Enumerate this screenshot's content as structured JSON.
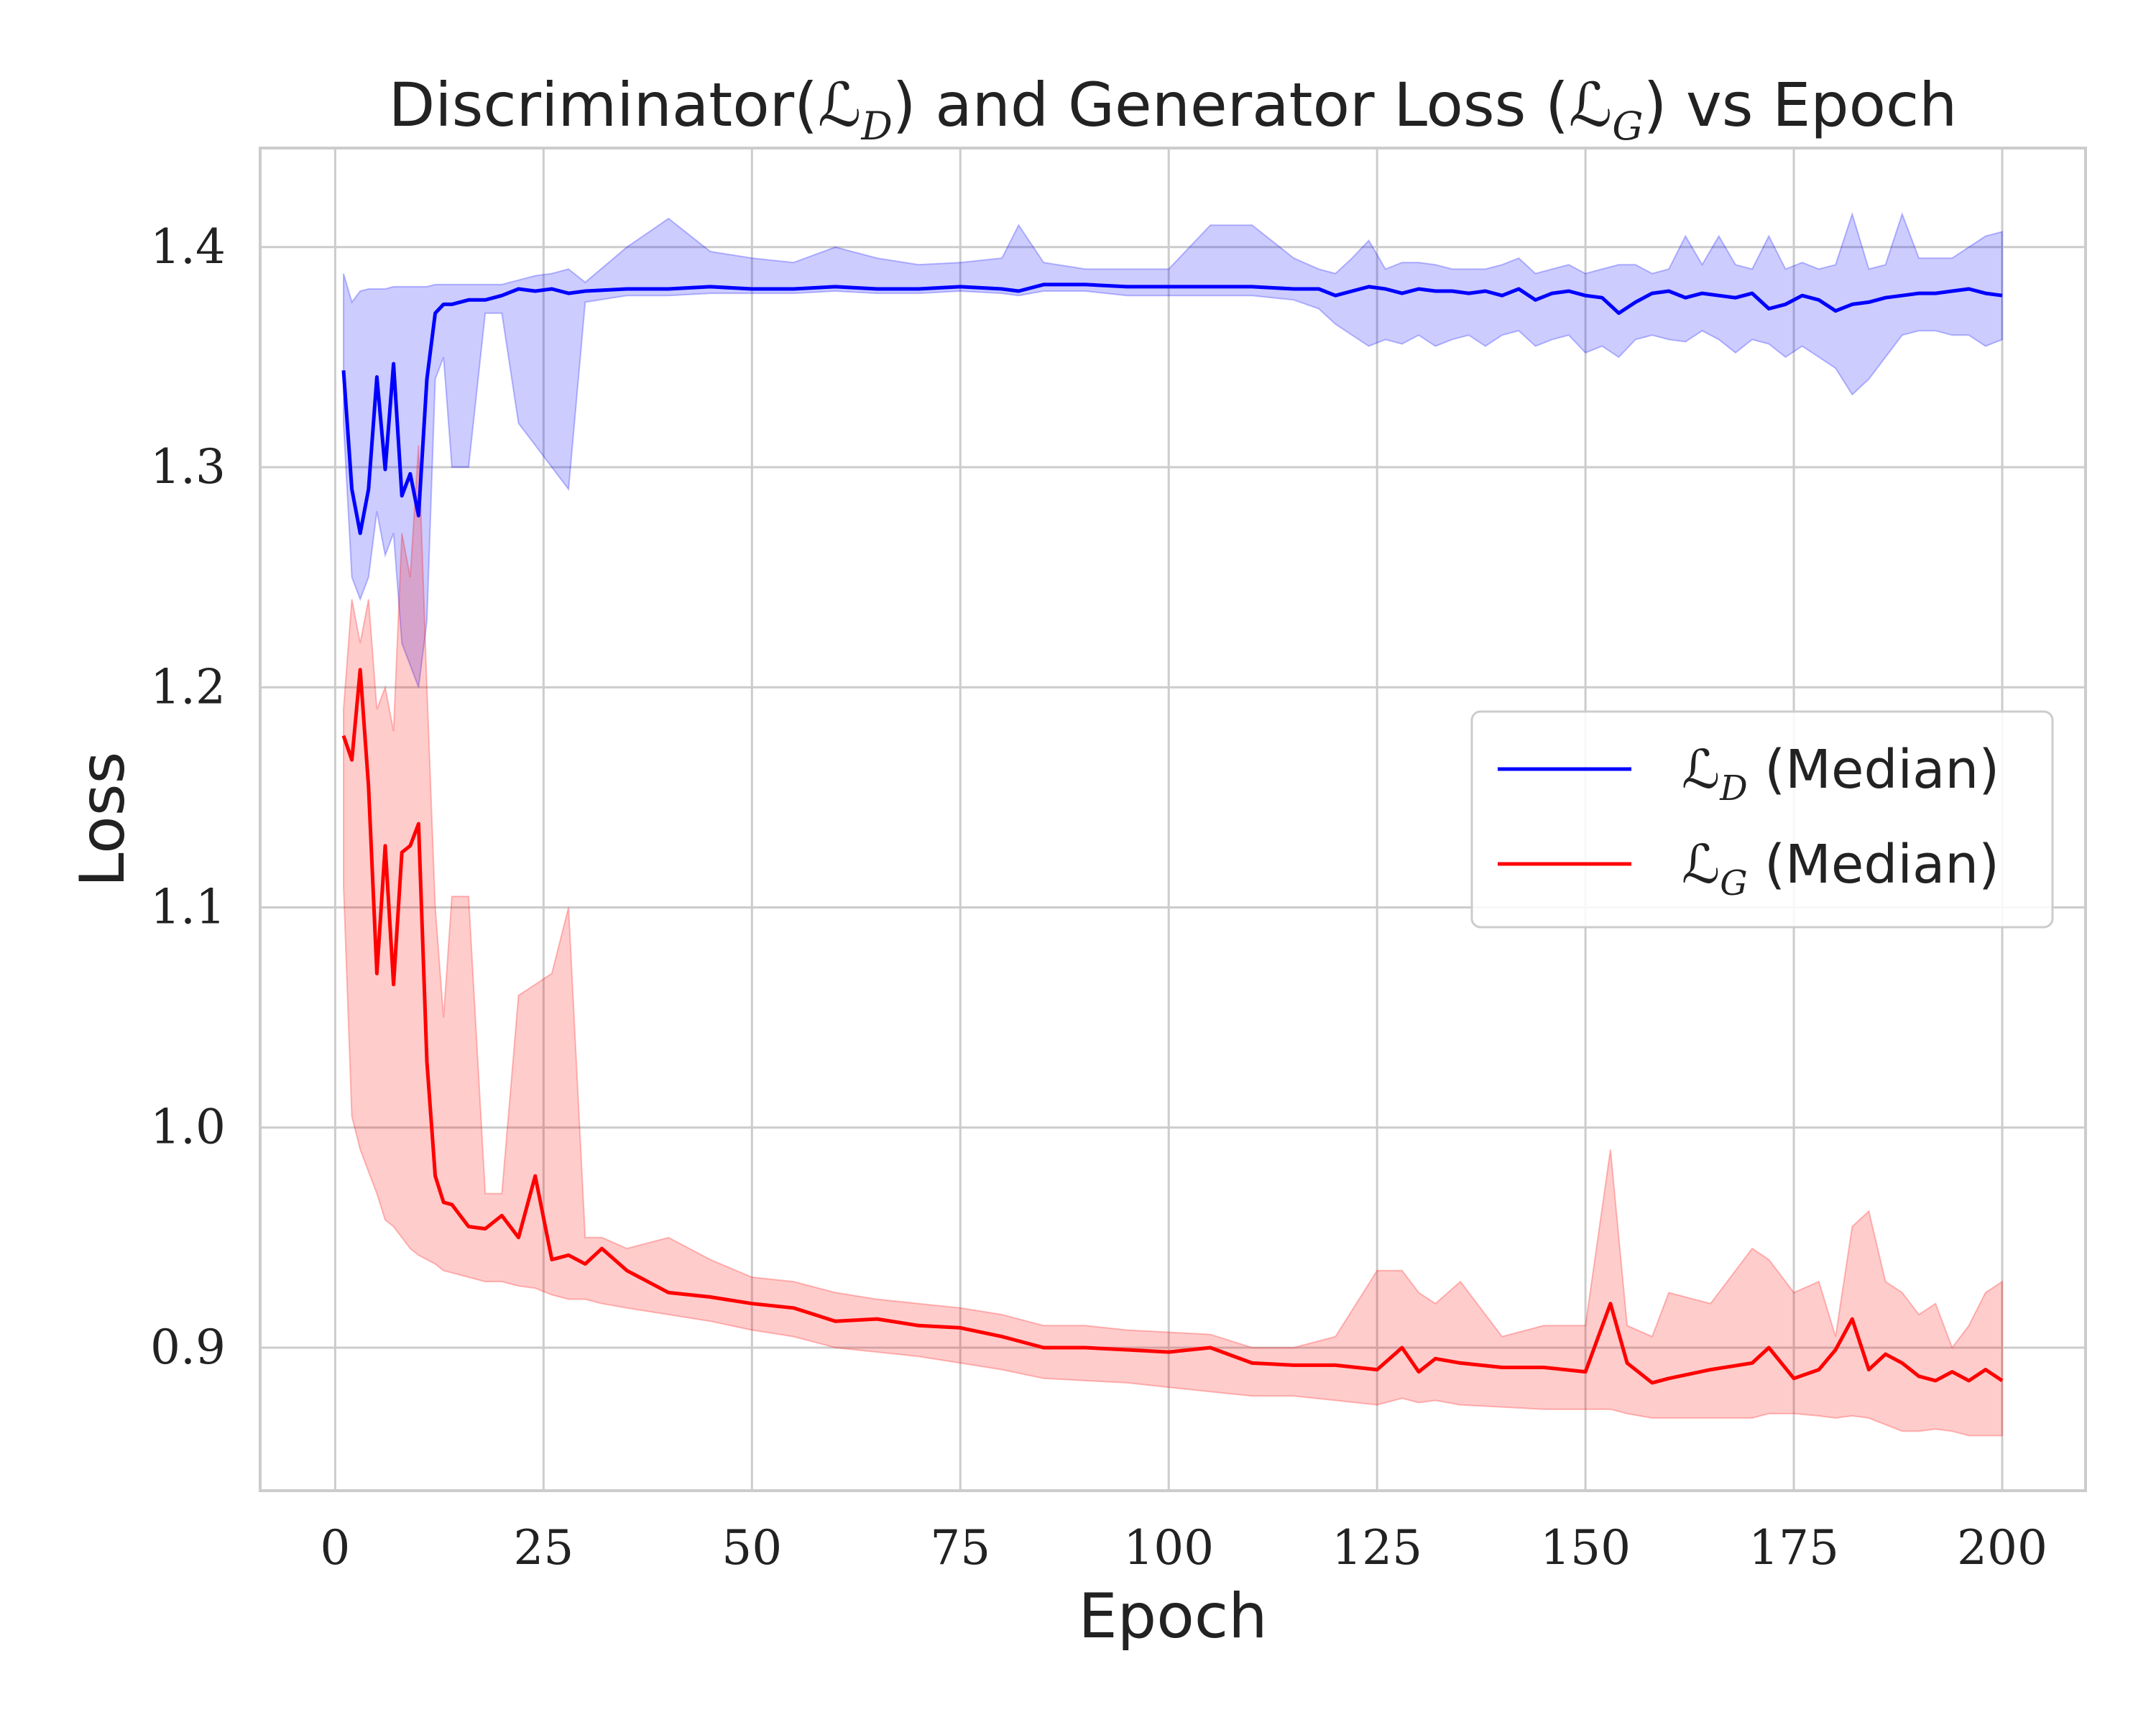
{
  "chart_data": {
    "type": "line",
    "title": "Discriminator(ℒ_D) and Generator Loss (ℒ_G) vs Epoch",
    "xlabel": "Epoch",
    "ylabel": "Loss",
    "xlim": [
      -9,
      210
    ],
    "ylim": [
      0.835,
      1.445
    ],
    "x_ticks": [
      0,
      25,
      50,
      75,
      100,
      125,
      150,
      175,
      200
    ],
    "y_ticks": [
      0.9,
      1.0,
      1.1,
      1.2,
      1.3,
      1.4
    ],
    "x_tick_labels": [
      "0",
      "25",
      "50",
      "75",
      "100",
      "125",
      "150",
      "175",
      "200"
    ],
    "y_tick_labels": [
      "0.9",
      "1.0",
      "1.1",
      "1.2",
      "1.3",
      "1.4"
    ],
    "grid": true,
    "legend_position": "center-right",
    "series": [
      {
        "name": "ℒ_D (Median)",
        "color": "#0000ff",
        "band_color": "#0000ff",
        "x": [
          1,
          2,
          3,
          4,
          5,
          6,
          7,
          8,
          9,
          10,
          11,
          12,
          13,
          14,
          16,
          18,
          20,
          22,
          24,
          26,
          28,
          30,
          35,
          40,
          45,
          50,
          55,
          60,
          65,
          70,
          75,
          80,
          82,
          85,
          90,
          95,
          100,
          105,
          110,
          115,
          118,
          120,
          122,
          124,
          126,
          128,
          130,
          132,
          134,
          136,
          138,
          140,
          142,
          144,
          146,
          148,
          150,
          152,
          154,
          156,
          158,
          160,
          162,
          164,
          166,
          168,
          170,
          172,
          174,
          176,
          178,
          180,
          182,
          184,
          186,
          188,
          190,
          192,
          194,
          196,
          198,
          200
        ],
        "values": [
          1.344,
          1.29,
          1.27,
          1.29,
          1.341,
          1.299,
          1.347,
          1.287,
          1.297,
          1.278,
          1.34,
          1.37,
          1.374,
          1.374,
          1.376,
          1.376,
          1.378,
          1.381,
          1.38,
          1.381,
          1.379,
          1.38,
          1.381,
          1.381,
          1.382,
          1.381,
          1.381,
          1.382,
          1.381,
          1.381,
          1.382,
          1.381,
          1.38,
          1.383,
          1.383,
          1.382,
          1.382,
          1.382,
          1.382,
          1.381,
          1.381,
          1.378,
          1.38,
          1.382,
          1.381,
          1.379,
          1.381,
          1.38,
          1.38,
          1.379,
          1.38,
          1.378,
          1.381,
          1.376,
          1.379,
          1.38,
          1.378,
          1.377,
          1.37,
          1.375,
          1.379,
          1.38,
          1.377,
          1.379,
          1.378,
          1.377,
          1.379,
          1.372,
          1.374,
          1.378,
          1.376,
          1.371,
          1.374,
          1.375,
          1.377,
          1.378,
          1.379,
          1.379,
          1.38,
          1.381,
          1.379,
          1.378
        ],
        "band_lower": [
          1.32,
          1.25,
          1.24,
          1.25,
          1.28,
          1.26,
          1.27,
          1.22,
          1.21,
          1.2,
          1.23,
          1.34,
          1.35,
          1.3,
          1.3,
          1.37,
          1.37,
          1.32,
          1.31,
          1.3,
          1.29,
          1.375,
          1.378,
          1.378,
          1.379,
          1.379,
          1.379,
          1.38,
          1.379,
          1.379,
          1.38,
          1.379,
          1.378,
          1.38,
          1.38,
          1.378,
          1.378,
          1.378,
          1.378,
          1.376,
          1.372,
          1.365,
          1.36,
          1.355,
          1.358,
          1.356,
          1.36,
          1.355,
          1.358,
          1.36,
          1.355,
          1.36,
          1.362,
          1.355,
          1.358,
          1.36,
          1.352,
          1.355,
          1.35,
          1.358,
          1.36,
          1.358,
          1.357,
          1.362,
          1.358,
          1.352,
          1.358,
          1.356,
          1.35,
          1.355,
          1.35,
          1.345,
          1.333,
          1.34,
          1.35,
          1.36,
          1.362,
          1.362,
          1.36,
          1.36,
          1.355,
          1.358
        ],
        "band_upper": [
          1.388,
          1.375,
          1.38,
          1.381,
          1.381,
          1.381,
          1.382,
          1.382,
          1.382,
          1.382,
          1.382,
          1.383,
          1.383,
          1.383,
          1.383,
          1.383,
          1.383,
          1.385,
          1.387,
          1.388,
          1.39,
          1.384,
          1.4,
          1.413,
          1.398,
          1.395,
          1.393,
          1.4,
          1.395,
          1.392,
          1.393,
          1.395,
          1.41,
          1.393,
          1.39,
          1.39,
          1.39,
          1.41,
          1.41,
          1.395,
          1.39,
          1.388,
          1.395,
          1.403,
          1.39,
          1.393,
          1.393,
          1.392,
          1.39,
          1.39,
          1.39,
          1.392,
          1.395,
          1.388,
          1.39,
          1.392,
          1.388,
          1.39,
          1.392,
          1.392,
          1.388,
          1.39,
          1.405,
          1.392,
          1.405,
          1.392,
          1.39,
          1.405,
          1.39,
          1.393,
          1.39,
          1.392,
          1.415,
          1.39,
          1.392,
          1.415,
          1.395,
          1.395,
          1.395,
          1.4,
          1.405,
          1.407
        ]
      },
      {
        "name": "ℒ_G (Median)",
        "color": "#ff0000",
        "band_color": "#ff0000",
        "x": [
          1,
          2,
          3,
          4,
          5,
          6,
          7,
          8,
          9,
          10,
          11,
          12,
          13,
          14,
          16,
          18,
          20,
          22,
          24,
          26,
          28,
          30,
          32,
          35,
          40,
          45,
          50,
          55,
          60,
          65,
          70,
          75,
          80,
          85,
          90,
          95,
          100,
          105,
          110,
          115,
          120,
          125,
          128,
          130,
          132,
          135,
          140,
          145,
          150,
          153,
          155,
          158,
          160,
          165,
          170,
          172,
          175,
          178,
          180,
          182,
          184,
          186,
          188,
          190,
          192,
          194,
          196,
          198,
          200
        ],
        "values": [
          1.178,
          1.167,
          1.208,
          1.155,
          1.07,
          1.128,
          1.065,
          1.125,
          1.128,
          1.138,
          1.03,
          0.978,
          0.966,
          0.965,
          0.955,
          0.954,
          0.96,
          0.95,
          0.978,
          0.94,
          0.942,
          0.938,
          0.945,
          0.935,
          0.925,
          0.923,
          0.92,
          0.918,
          0.912,
          0.913,
          0.91,
          0.909,
          0.905,
          0.9,
          0.9,
          0.899,
          0.898,
          0.9,
          0.893,
          0.892,
          0.892,
          0.89,
          0.9,
          0.889,
          0.895,
          0.893,
          0.891,
          0.891,
          0.889,
          0.92,
          0.893,
          0.884,
          0.886,
          0.89,
          0.893,
          0.9,
          0.886,
          0.89,
          0.899,
          0.913,
          0.89,
          0.897,
          0.893,
          0.887,
          0.885,
          0.889,
          0.885,
          0.89,
          0.885
        ],
        "band_lower": [
          1.11,
          1.005,
          0.99,
          0.98,
          0.97,
          0.958,
          0.955,
          0.95,
          0.945,
          0.942,
          0.94,
          0.938,
          0.935,
          0.934,
          0.932,
          0.93,
          0.93,
          0.928,
          0.927,
          0.924,
          0.922,
          0.922,
          0.92,
          0.918,
          0.915,
          0.912,
          0.908,
          0.905,
          0.9,
          0.898,
          0.896,
          0.893,
          0.89,
          0.886,
          0.885,
          0.884,
          0.882,
          0.88,
          0.878,
          0.878,
          0.876,
          0.874,
          0.877,
          0.875,
          0.876,
          0.874,
          0.873,
          0.872,
          0.872,
          0.872,
          0.87,
          0.868,
          0.868,
          0.868,
          0.868,
          0.87,
          0.87,
          0.869,
          0.868,
          0.869,
          0.868,
          0.865,
          0.862,
          0.862,
          0.863,
          0.862,
          0.86,
          0.86,
          0.86
        ],
        "band_upper": [
          1.19,
          1.24,
          1.22,
          1.24,
          1.19,
          1.2,
          1.18,
          1.27,
          1.25,
          1.31,
          1.2,
          1.1,
          1.05,
          1.105,
          1.105,
          0.97,
          0.97,
          1.06,
          1.065,
          1.07,
          1.1,
          0.95,
          0.95,
          0.945,
          0.95,
          0.94,
          0.932,
          0.93,
          0.925,
          0.922,
          0.92,
          0.918,
          0.915,
          0.91,
          0.91,
          0.908,
          0.907,
          0.906,
          0.9,
          0.9,
          0.905,
          0.935,
          0.935,
          0.925,
          0.92,
          0.93,
          0.905,
          0.91,
          0.91,
          0.99,
          0.91,
          0.905,
          0.925,
          0.92,
          0.945,
          0.94,
          0.925,
          0.93,
          0.905,
          0.955,
          0.962,
          0.93,
          0.925,
          0.915,
          0.92,
          0.9,
          0.91,
          0.925,
          0.93
        ]
      }
    ]
  }
}
